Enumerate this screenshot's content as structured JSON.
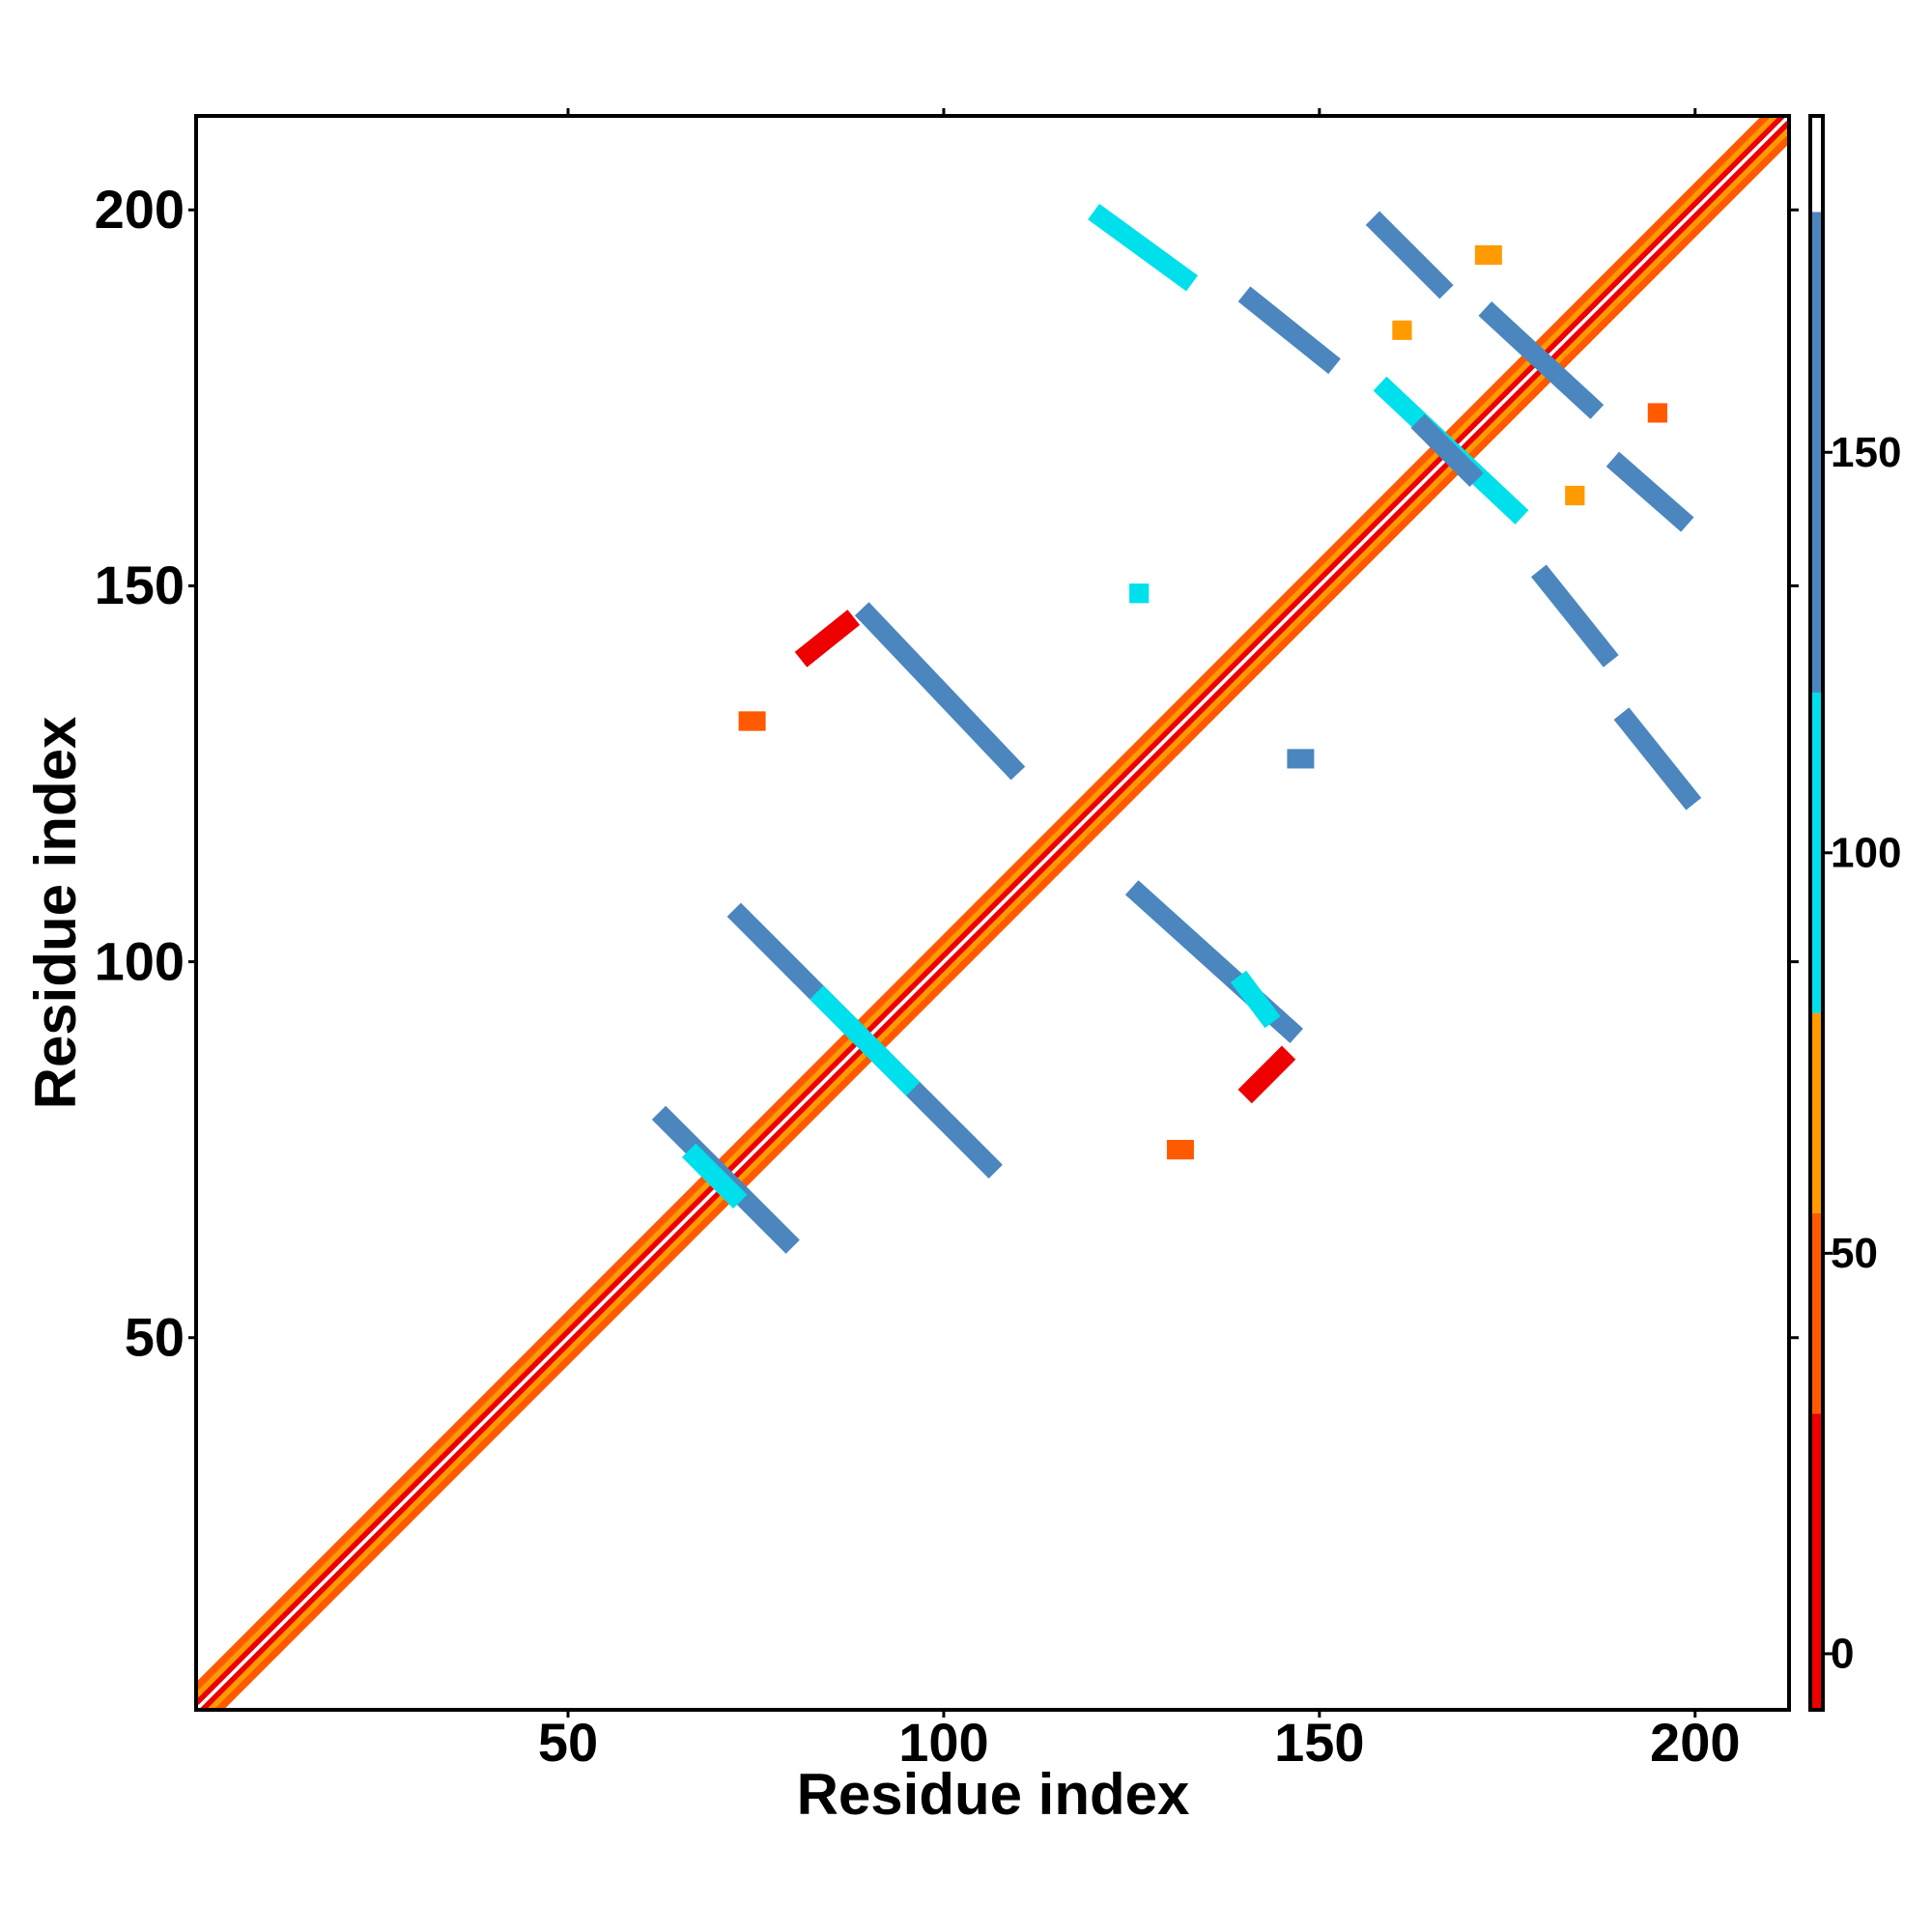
{
  "chart_data": {
    "type": "contact_map",
    "xlabel": "Residue index",
    "ylabel": "Residue index",
    "xlim": [
      0.5,
      212.5
    ],
    "ylim": [
      0.5,
      212.5
    ],
    "xticks": [
      50,
      100,
      150,
      200
    ],
    "yticks": [
      50,
      100,
      150,
      200
    ],
    "diagonal": [
      {
        "offset": 1,
        "value": 10
      },
      {
        "offset": -1,
        "value": 10
      },
      {
        "offset": 2,
        "value": 65
      },
      {
        "offset": -2,
        "value": 65
      },
      {
        "offset": 3,
        "value": 40
      },
      {
        "offset": -3,
        "value": 40
      }
    ],
    "contacts": [
      {
        "x": [
          63,
          79
        ],
        "y": [
          79,
          63
        ],
        "value": 150
      },
      {
        "x": [
          67,
          72
        ],
        "y": [
          74,
          69
        ],
        "value": 100
      },
      {
        "x": [
          73,
          106
        ],
        "y": [
          106,
          73
        ],
        "value": 150
      },
      {
        "x": [
          84,
          95
        ],
        "y": [
          95,
          84
        ],
        "value": 100
      },
      {
        "x": [
          90,
          109
        ],
        "y": [
          146,
          126
        ],
        "value": 150
      },
      {
        "x": [
          121,
          132
        ],
        "y": [
          199,
          191
        ],
        "value": 110
      },
      {
        "x": [
          141,
          151
        ],
        "y": [
          188,
          180
        ],
        "value": 150
      },
      {
        "x": [
          158,
          166
        ],
        "y": [
          198,
          190
        ],
        "value": 150
      },
      {
        "x": [
          159,
          176
        ],
        "y": [
          176,
          160
        ],
        "value": 110
      },
      {
        "x": [
          164,
          170
        ],
        "y": [
          171,
          165
        ],
        "value": 150
      },
      {
        "x": [
          173,
          186
        ],
        "y": [
          186,
          174
        ],
        "value": 150
      },
      {
        "x": [
          190,
          198
        ],
        "y": [
          166,
          159
        ],
        "value": 150
      },
      {
        "x": [
          180,
          188
        ],
        "y": [
          151,
          141
        ],
        "value": 150
      },
      {
        "x": [
          191,
          199
        ],
        "y": [
          132,
          122
        ],
        "value": 130
      },
      {
        "x": [
          126,
          146
        ],
        "y": [
          109,
          91
        ],
        "value": 150
      },
      {
        "x": [
          140,
          143
        ],
        "y": [
          97,
          93
        ],
        "value": 110
      },
      {
        "x": [
          126,
          126
        ],
        "y": [
          149,
          149
        ],
        "value": 110
      },
      {
        "x": [
          147,
          148
        ],
        "y": [
          127,
          127
        ],
        "value": 150
      },
      {
        "x": [
          82,
          87
        ],
        "y": [
          141,
          145
        ],
        "value": 10
      },
      {
        "x": [
          141,
          145
        ],
        "y": [
          83,
          87
        ],
        "value": 10
      },
      {
        "x": [
          74,
          75
        ],
        "y": [
          132,
          132
        ],
        "value": 45
      },
      {
        "x": [
          131,
          132
        ],
        "y": [
          75,
          75
        ],
        "value": 45
      },
      {
        "x": [
          172,
          173
        ],
        "y": [
          194,
          194
        ],
        "value": 65
      },
      {
        "x": [
          161,
          161
        ],
        "y": [
          184,
          184
        ],
        "value": 65
      },
      {
        "x": [
          195,
          195
        ],
        "y": [
          173,
          173
        ],
        "value": 45
      },
      {
        "x": [
          184,
          184
        ],
        "y": [
          162,
          162
        ],
        "value": 65
      }
    ],
    "colorbar": {
      "ylim": [
        -7,
        192
      ],
      "ticks": [
        0,
        50,
        100,
        150
      ],
      "bands": [
        {
          "from": -7,
          "to": 30,
          "color": "#ee0000"
        },
        {
          "from": 30,
          "to": 55,
          "color": "#ff5a00"
        },
        {
          "from": 55,
          "to": 80,
          "color": "#ff9a00"
        },
        {
          "from": 80,
          "to": 120,
          "color": "#00e0ec"
        },
        {
          "from": 120,
          "to": 180,
          "color": "#4b86bf"
        },
        {
          "from": 180,
          "to": 192,
          "color": "#ffffff"
        }
      ]
    }
  }
}
